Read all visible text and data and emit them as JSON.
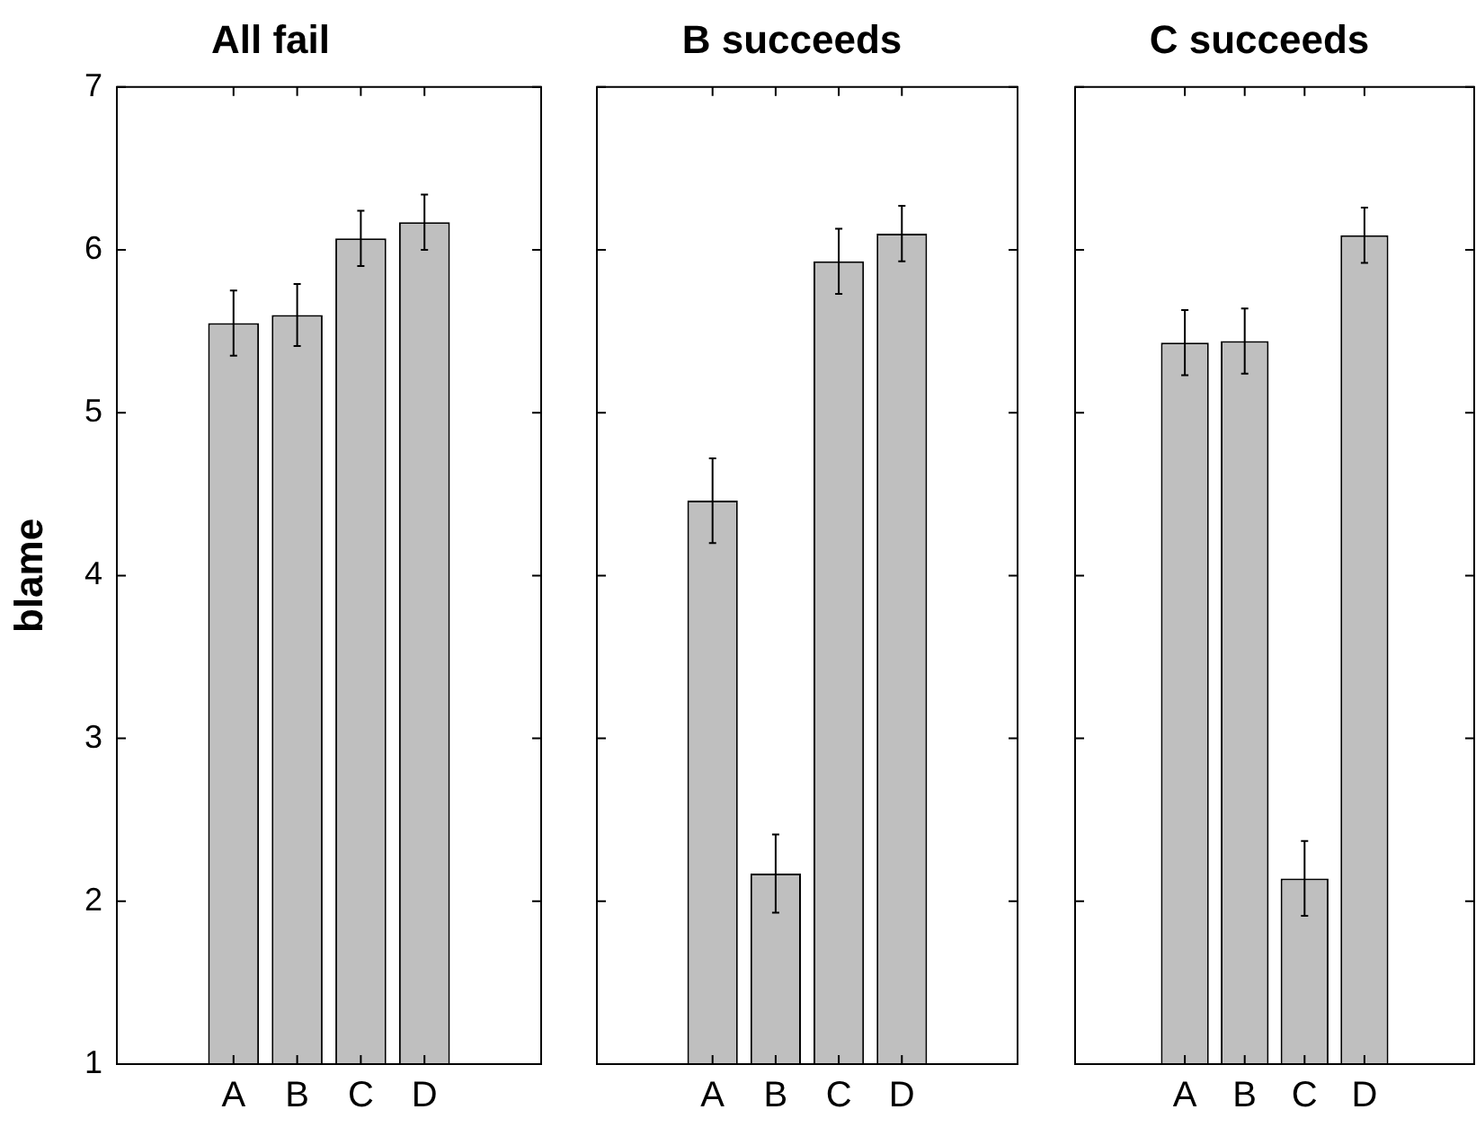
{
  "chart_data": [
    {
      "type": "bar",
      "title": "All fail",
      "ylabel": "blame",
      "categories": [
        "A",
        "B",
        "C",
        "D"
      ],
      "values": [
        5.55,
        5.6,
        6.07,
        6.17
      ],
      "errors": [
        0.2,
        0.19,
        0.17,
        0.17
      ],
      "color": "#bfbfbf",
      "ylim": [
        1,
        7
      ],
      "yticks": [
        1,
        2,
        3,
        4,
        5,
        6,
        7
      ],
      "grid": false
    },
    {
      "type": "bar",
      "title": "B succeeds",
      "categories": [
        "A",
        "B",
        "C",
        "D"
      ],
      "values": [
        4.46,
        2.17,
        5.93,
        6.1
      ],
      "errors": [
        0.26,
        0.24,
        0.2,
        0.17
      ],
      "color": "#bfbfbf",
      "ylim": [
        1,
        7
      ],
      "yticks": [
        1,
        2,
        3,
        4,
        5,
        6,
        7
      ],
      "grid": false,
      "tick_labels": "x"
    },
    {
      "type": "bar",
      "title": "C succeeds",
      "categories": [
        "A",
        "B",
        "C",
        "D"
      ],
      "values": [
        5.43,
        5.44,
        2.14,
        6.09
      ],
      "errors": [
        0.2,
        0.2,
        0.23,
        0.17
      ],
      "color": "#bfbfbf",
      "ylim": [
        1,
        7
      ],
      "yticks": [
        1,
        2,
        3,
        4,
        5,
        6,
        7
      ],
      "grid": false,
      "tick_labels": "x"
    }
  ]
}
